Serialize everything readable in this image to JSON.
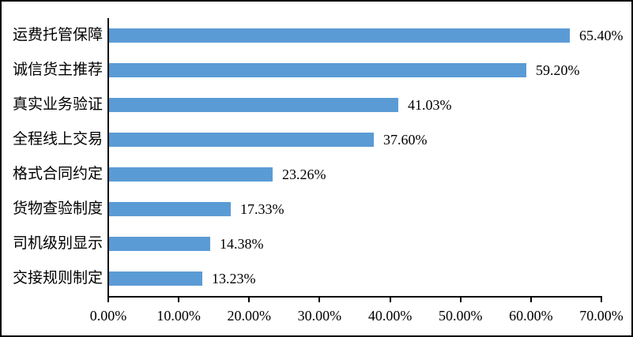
{
  "figure": {
    "background": "#ffffff",
    "border_color": "#000000"
  },
  "chart_data": {
    "type": "bar",
    "orientation": "horizontal",
    "title": "",
    "xlabel": "",
    "ylabel": "",
    "categories": [
      "运费托管保障",
      "诚信货主推荐",
      "真实业务验证",
      "全程线上交易",
      "格式合同约定",
      "货物查验制度",
      "司机级别显示",
      "交接规则制定"
    ],
    "values": [
      65.4,
      59.2,
      41.03,
      37.6,
      23.26,
      17.33,
      14.38,
      13.23
    ],
    "value_labels": [
      "65.40%",
      "59.20%",
      "41.03%",
      "37.60%",
      "23.26%",
      "17.33%",
      "14.38%",
      "13.23%"
    ],
    "x_tick_labels": [
      "0.00%",
      "10.00%",
      "20.00%",
      "30.00%",
      "40.00%",
      "50.00%",
      "60.00%",
      "70.00%"
    ],
    "x_tick_values": [
      0,
      10,
      20,
      30,
      40,
      50,
      60,
      70
    ],
    "xlim": [
      0,
      70
    ],
    "grid": false,
    "legend": null,
    "bar_color": "#5B9BD5",
    "axis_color": "#000000",
    "text_color": "#000000"
  }
}
